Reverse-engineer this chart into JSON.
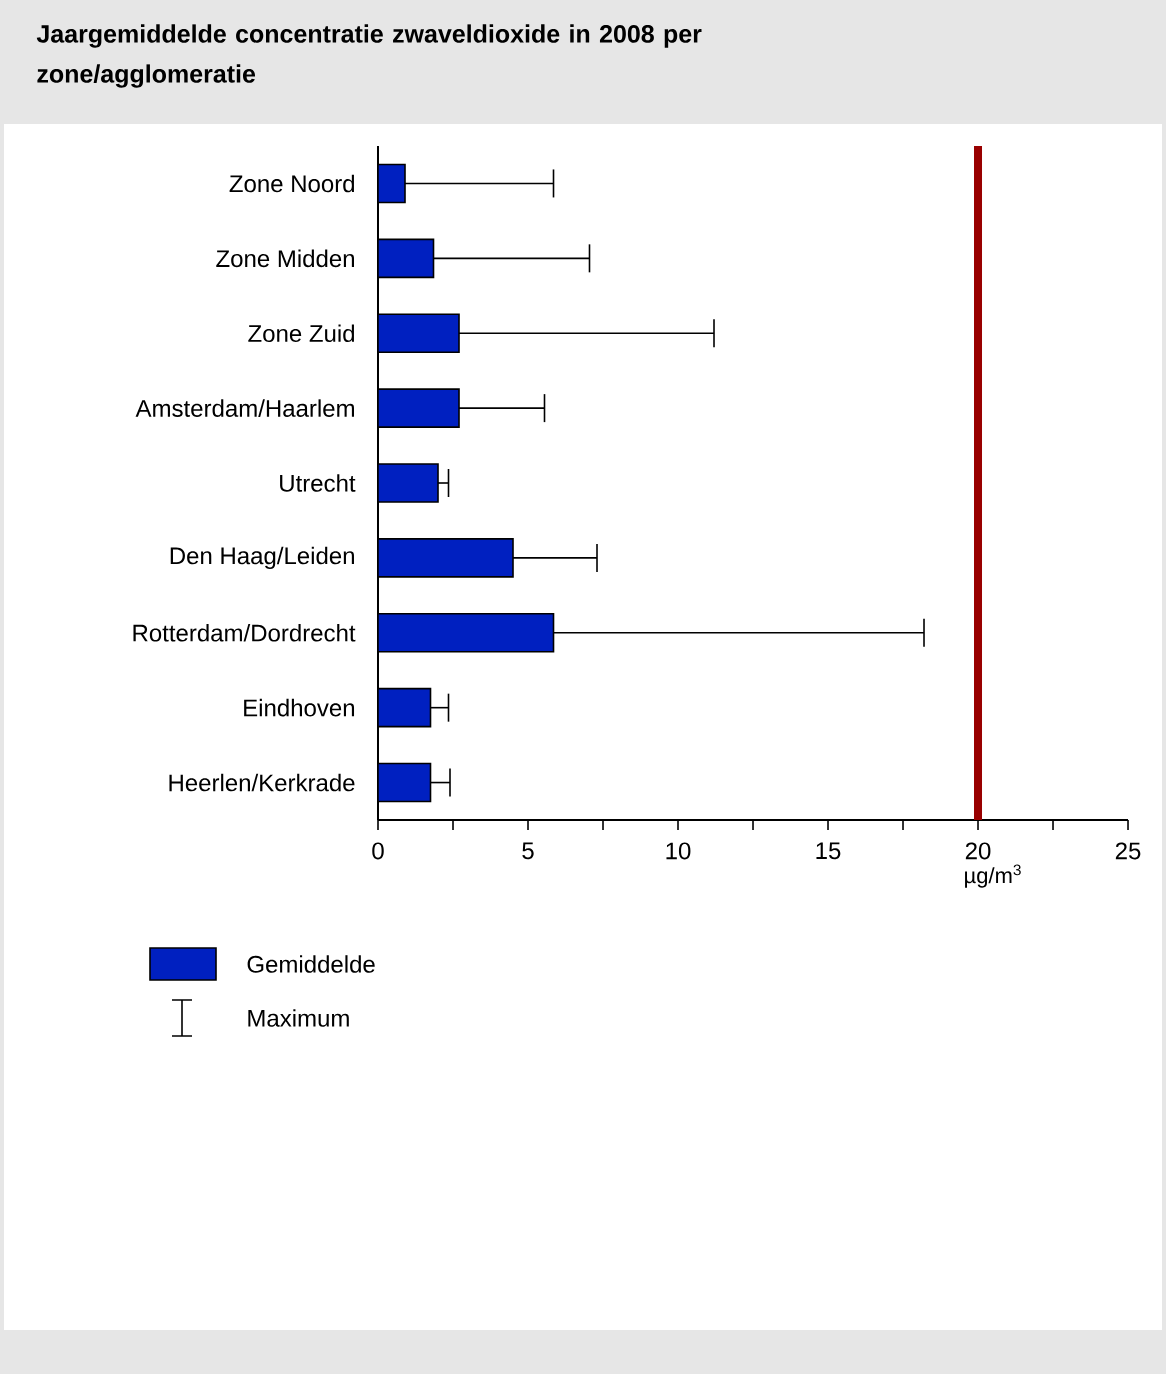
{
  "chart_data": {
    "type": "bar",
    "orientation": "horizontal",
    "title": "Jaargemiddelde concentratie zwaveldioxide in 2008 per zone/agglomeratie",
    "xlabel": "µg/m$^{3}$",
    "categories": [
      "Zone Noord",
      "Zone Midden",
      "Zone Zuid",
      "Amsterdam/Haarlem",
      "Utrecht",
      "Den Haag/Leiden",
      "Rotterdam/Dordrecht",
      "Eindhoven",
      "Heerlen/Kerkrade"
    ],
    "series": [
      {
        "name": "Gemiddelde",
        "color": "#0020c0",
        "values": [
          0.9,
          1.85,
          2.7,
          2.7,
          2.0,
          4.5,
          5.85,
          1.75,
          1.75
        ],
        "errors": [
          [
            0.9,
            5.85
          ],
          [
            1.85,
            7.05
          ],
          [
            2.7,
            11.2
          ],
          [
            2.7,
            5.55
          ],
          [
            2.0,
            2.35
          ],
          [
            4.5,
            7.3
          ],
          [
            5.85,
            18.2
          ],
          [
            1.75,
            2.35
          ],
          [
            1.75,
            2.4
          ]
        ]
      }
    ],
    "xlim": [
      0,
      25
    ],
    "xticks": [
      0,
      {
        "value": 2.5,
        "label": null
      },
      5,
      {
        "value": 7.5,
        "label": null
      },
      10,
      {
        "value": 12.5,
        "label": null
      },
      15,
      {
        "value": 17.5,
        "label": null
      },
      20,
      {
        "value": 22.5,
        "label": null
      },
      25
    ],
    "ref_lines": [
      {
        "axis": "x",
        "value": 20,
        "color": "#990000"
      }
    ],
    "annotations": [
      "Maximum"
    ],
    "legend": "bottom left"
  }
}
